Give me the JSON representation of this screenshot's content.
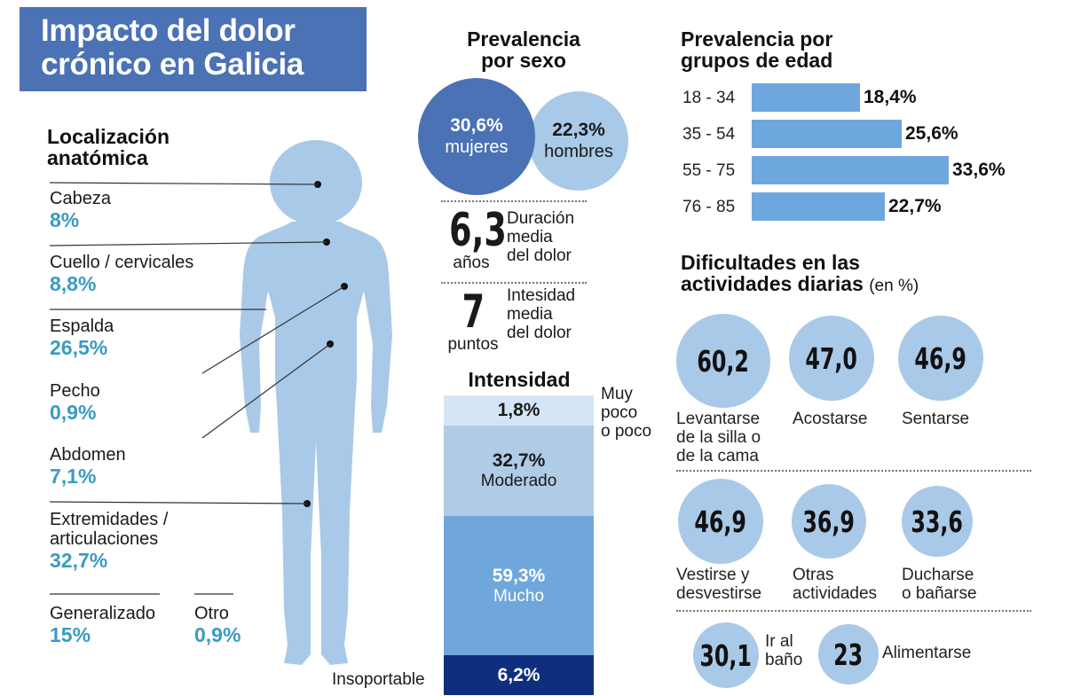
{
  "title": {
    "line1": "Impacto del dolor",
    "line2": "crónico en Galicia"
  },
  "localizacion": {
    "heading1": "Localización",
    "heading2": "anatómica",
    "items": [
      {
        "name": "Cabeza",
        "value": "8%"
      },
      {
        "name": "Cuello / cervicales",
        "value": "8,8%"
      },
      {
        "name": "Espalda",
        "value": "26,5%"
      },
      {
        "name": "Pecho",
        "value": "0,9%"
      },
      {
        "name": "Abdomen",
        "value": "7,1%"
      },
      {
        "name_line1": "Extremidades /",
        "name_line2": "articulaciones",
        "value": "32,7%"
      },
      {
        "name": "Generalizado",
        "value": "15%"
      },
      {
        "name": "Otro",
        "value": "0,9%"
      }
    ]
  },
  "sexo": {
    "heading1": "Prevalencia",
    "heading2": "por sexo",
    "mujeres": {
      "value": "30,6%",
      "label": "mujeres",
      "color": "#4a72b4"
    },
    "hombres": {
      "value": "22,3%",
      "label": "hombres",
      "color": "#a9c9e8"
    }
  },
  "duracion": {
    "value": "6,3",
    "unit": "años",
    "desc1": "Duración",
    "desc2": "media",
    "desc3": "del dolor"
  },
  "intensidad_media": {
    "value": "7",
    "unit": "puntos",
    "desc1": "Intesidad",
    "desc2": "media",
    "desc3": "del dolor"
  },
  "intensidad": {
    "heading": "Intensidad",
    "poco_label1": "Muy",
    "poco_label2": "poco",
    "poco_label3": "o poco",
    "insoportable_label": "Insoportable",
    "segments": [
      {
        "value": "1,8%",
        "label": "",
        "color": "#d4e6f6"
      },
      {
        "value": "32,7%",
        "label": "Moderado",
        "color": "#afcbe6"
      },
      {
        "value": "59,3%",
        "label": "Mucho",
        "color": "#6fa7dc"
      },
      {
        "value": "6,2%",
        "label": "",
        "color": "#0f2f7e"
      }
    ]
  },
  "edad": {
    "heading1": "Prevalencia por",
    "heading2": "grupos de edad",
    "color": "#6ea7de"
  },
  "dificultades": {
    "heading1": "Dificultades en las",
    "heading2": "actividades diarias",
    "suffix": "(en %)",
    "circle_color": "#a9c9e8",
    "items": [
      {
        "value": "60,2",
        "l1": "Levantarse",
        "l2": "de la silla o",
        "l3": "de la cama"
      },
      {
        "value": "47,0",
        "l1": "Acostarse"
      },
      {
        "value": "46,9",
        "l1": "Sentarse"
      },
      {
        "value": "46,9",
        "l1": "Vestirse y",
        "l2": "desvestirse"
      },
      {
        "value": "36,9",
        "l1": "Otras",
        "l2": "actividades"
      },
      {
        "value": "33,6",
        "l1": "Ducharse",
        "l2": "o bañarse"
      },
      {
        "value": "30,1",
        "l1": "Ir al",
        "l2": "baño"
      },
      {
        "value": "23",
        "l1": "Alimentarse"
      }
    ]
  },
  "chart_data": {
    "type": "bar",
    "title": "Prevalencia por grupos de edad",
    "categories": [
      "18 - 34",
      "35 - 54",
      "55 - 75",
      "76 - 85"
    ],
    "values": [
      18.4,
      25.6,
      33.6,
      22.7
    ],
    "value_labels": [
      "18,4%",
      "25,6%",
      "33,6%",
      "22,7%"
    ],
    "orientation": "horizontal",
    "xlim": [
      0,
      33.6
    ]
  }
}
